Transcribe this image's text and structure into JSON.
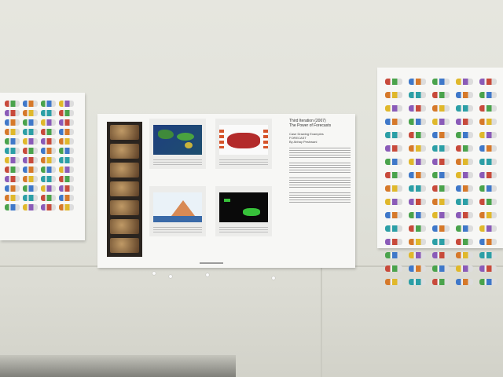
{
  "center_poster": {
    "heading": "Third Iteration (2007)",
    "title": "The Power of Forecasts",
    "subtitle_lines": [
      "Case Drawing Examples",
      "FORECAST",
      "By Abhay Peshwani"
    ]
  },
  "colors": {
    "logo_palette": [
      "#c84a3b",
      "#3f78c9",
      "#4aa34c",
      "#e0b82b",
      "#8a5bb8",
      "#d6792a",
      "#2c9fa6"
    ]
  }
}
